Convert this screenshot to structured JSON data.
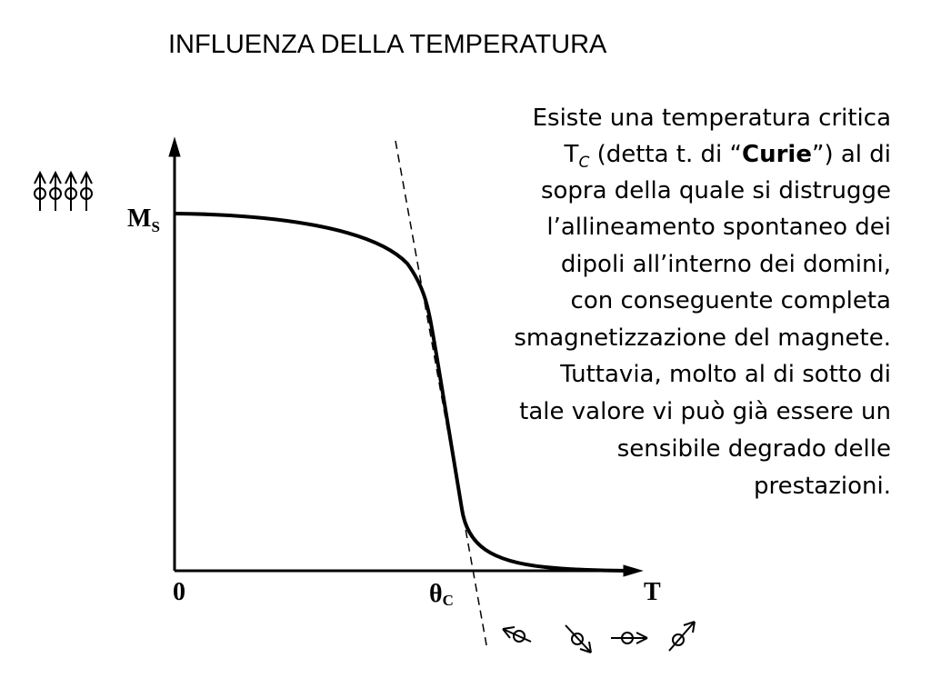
{
  "title": "INFLUENZA DELLA TEMPERATURA",
  "paragraph": [
    [
      "Esiste una temperatura critica"
    ],
    [
      "T",
      "C",
      " (detta t. di “",
      "Curie",
      "”) al di"
    ],
    [
      "sopra della quale si distrugge"
    ],
    [
      "l’allineamento spontaneo dei"
    ],
    [
      "dipoli all’interno dei domini,"
    ],
    [
      "con conseguente completa"
    ],
    [
      "smagnetizzazione del magnete."
    ],
    [
      "Tuttavia, molto al di sotto di"
    ],
    [
      "tale valore vi può già essere un"
    ],
    [
      "sensibile degrado delle"
    ],
    [
      "prestazioni."
    ]
  ],
  "diagram": {
    "y_label": [
      "M",
      "S"
    ],
    "origin": "0",
    "critical": [
      "θ",
      "C"
    ],
    "x_label": "T"
  }
}
